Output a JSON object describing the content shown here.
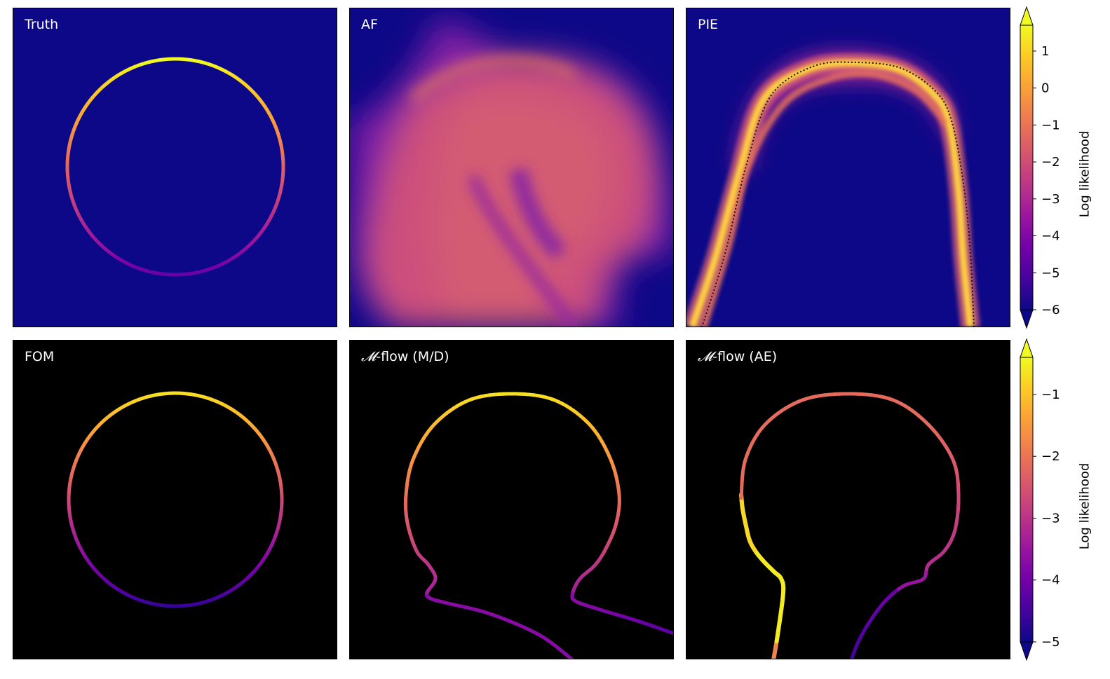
{
  "colors": {
    "plasma": [
      "#0d0887",
      "#47039f",
      "#7301a8",
      "#9c179e",
      "#bd3786",
      "#d8576b",
      "#ed7953",
      "#fb9f3a",
      "#fdca26",
      "#f0f921"
    ],
    "top_background": "#0d0887",
    "bottom_background": "#000000",
    "frame": "#000000"
  },
  "panels": [
    {
      "id": "truth",
      "title": "Truth"
    },
    {
      "id": "af",
      "title": "AF"
    },
    {
      "id": "pie",
      "title": "PIE"
    },
    {
      "id": "fom",
      "title": "FOM"
    },
    {
      "id": "mflow_md",
      "title": "-flow (M/D)",
      "title_symbol": "𝓜"
    },
    {
      "id": "mflow_ae",
      "title": "-flow (AE)",
      "title_symbol": "𝓜"
    }
  ],
  "chart_data": [
    {
      "type": "heatmap",
      "row": "top",
      "colorbar": {
        "label": "Log likelihood",
        "min": -6,
        "max": 1.7,
        "ticks": [
          -6,
          -5,
          -4,
          -3,
          -2,
          -1,
          0,
          1
        ],
        "tick_labels": [
          "−6",
          "−5",
          "−4",
          "−3",
          "−2",
          "−1",
          "0",
          "1"
        ],
        "extend": "both"
      }
    },
    {
      "type": "line",
      "row": "bottom",
      "colorbar": {
        "label": "Log likelihood",
        "min": -5,
        "max": -0.4,
        "ticks": [
          -5,
          -4,
          -3,
          -2,
          -1
        ],
        "tick_labels": [
          "−5",
          "−4",
          "−3",
          "−2",
          "−1"
        ],
        "extend": "both"
      }
    }
  ]
}
